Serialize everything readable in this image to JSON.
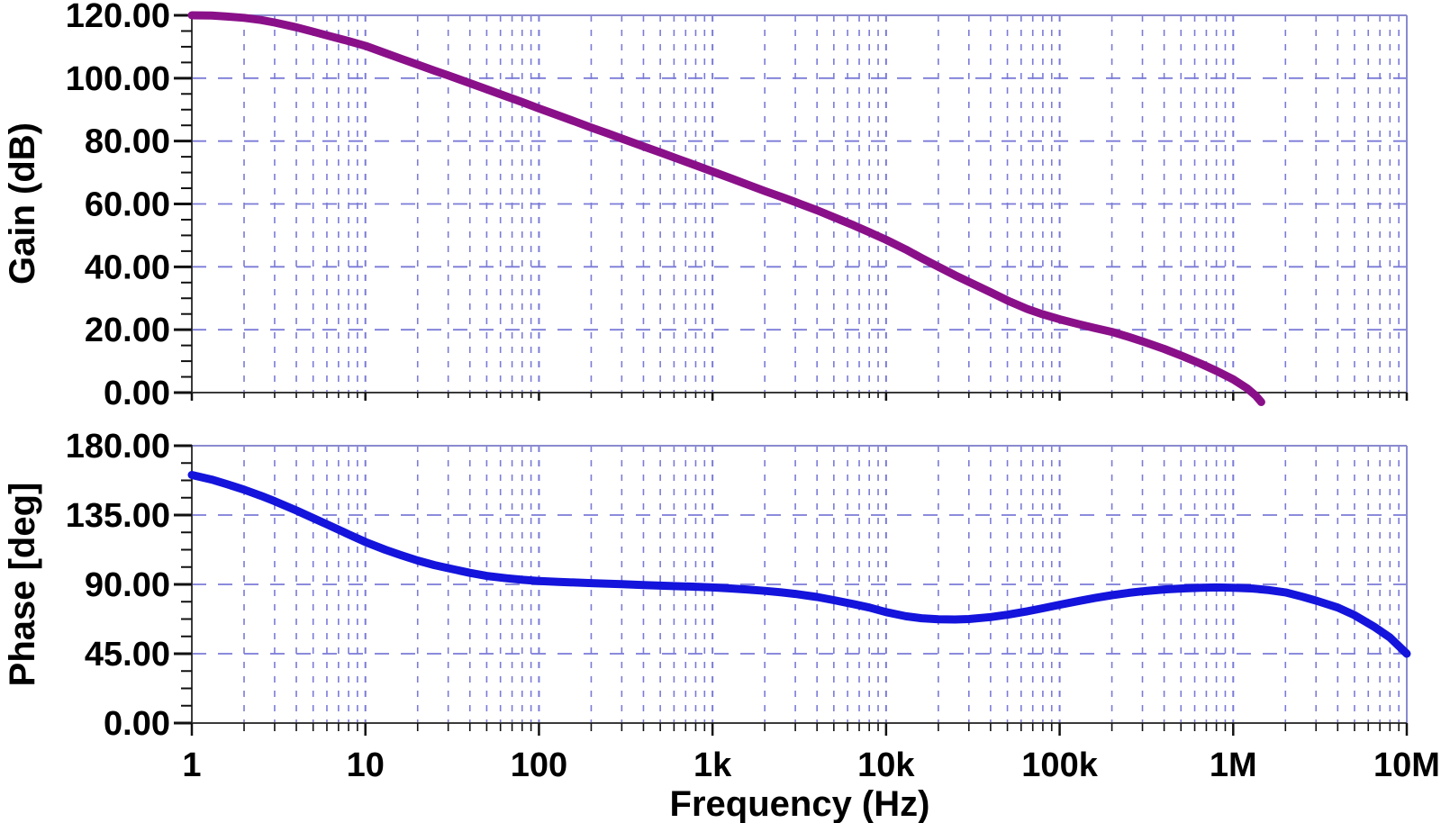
{
  "chart_data": [
    {
      "type": "line",
      "name": "gain-vs-frequency",
      "ylabel": "Gain (dB)",
      "ylim": [
        0,
        120
      ],
      "yticks": {
        "values": [
          120,
          100,
          80,
          60,
          40,
          20,
          0
        ],
        "labels": [
          "120.00",
          "100.00",
          "80.00",
          "60.00",
          "40.00",
          "20.00",
          "0.00"
        ]
      },
      "y_minor_step": 5,
      "color": "#8A1089",
      "x": [
        1,
        1.3,
        1.6,
        2,
        2.5,
        3,
        4,
        5,
        6,
        8,
        10,
        13,
        16,
        20,
        25,
        30,
        40,
        50,
        65,
        80,
        100,
        130,
        160,
        200,
        250,
        300,
        400,
        500,
        650,
        800,
        1000,
        1300,
        1600,
        2000,
        2500,
        3000,
        4000,
        5000,
        6500,
        8000,
        10000,
        13000,
        16000,
        20000,
        25000,
        30000,
        40000,
        50000,
        65000,
        80000,
        100000,
        130000,
        160000,
        200000,
        250000,
        300000,
        400000,
        500000,
        650000,
        800000,
        1000000,
        1200000,
        1350000,
        1450000
      ],
      "y": [
        120,
        119.9,
        119.6,
        119.2,
        118.5,
        117.7,
        116.2,
        114.8,
        113.6,
        111.8,
        110.3,
        108,
        106.2,
        104.3,
        102.4,
        100.9,
        98.4,
        96.5,
        94.2,
        92.4,
        90.4,
        88.1,
        86.3,
        84.3,
        82.4,
        80.8,
        78.3,
        76.4,
        74.1,
        72.3,
        70.3,
        68,
        66.1,
        64.1,
        62.2,
        60.6,
        58,
        55.8,
        53.2,
        51,
        48.6,
        45.5,
        42.8,
        40,
        37.3,
        35.2,
        31.9,
        29.3,
        26.6,
        24.9,
        23.3,
        21.7,
        20.5,
        19.3,
        17.7,
        16.3,
        13.9,
        11.8,
        9.2,
        6.9,
        4.2,
        1.4,
        -1,
        -3
      ]
    },
    {
      "type": "line",
      "name": "phase-vs-frequency",
      "ylabel": "Phase [deg]",
      "ylim": [
        0,
        180
      ],
      "yticks": {
        "values": [
          180,
          135,
          90,
          45,
          0
        ],
        "labels": [
          "180.00",
          "135.00",
          "90.00",
          "45.00",
          "0.00"
        ]
      },
      "y_minor_step": 11.25,
      "color": "#1414DC",
      "x": [
        1,
        1.3,
        1.6,
        2,
        2.5,
        3,
        4,
        5,
        6,
        8,
        10,
        13,
        16,
        20,
        25,
        30,
        40,
        50,
        65,
        80,
        100,
        130,
        160,
        200,
        250,
        300,
        400,
        500,
        650,
        800,
        1000,
        1300,
        1600,
        2000,
        2500,
        3000,
        4000,
        5000,
        6500,
        8000,
        10000,
        13000,
        16000,
        20000,
        25000,
        30000,
        40000,
        50000,
        65000,
        80000,
        100000,
        130000,
        160000,
        200000,
        250000,
        300000,
        400000,
        500000,
        650000,
        800000,
        1000000,
        1300000,
        1600000,
        2000000,
        2500000,
        3000000,
        4000000,
        5000000,
        6500000,
        8000000,
        10000000
      ],
      "y": [
        161,
        158,
        155,
        151.5,
        147.5,
        144,
        138,
        133,
        129,
        122.5,
        117.5,
        112.5,
        109,
        105.5,
        102.5,
        100.5,
        97.5,
        95.5,
        94,
        93,
        92.2,
        91.6,
        91.2,
        90.8,
        90.4,
        90.1,
        89.6,
        89.2,
        88.8,
        88.5,
        88,
        87.3,
        86.6,
        85.8,
        84.8,
        83.8,
        81.8,
        79.8,
        77.2,
        75,
        72,
        69.3,
        68,
        67.3,
        67.2,
        67.5,
        68.8,
        70.3,
        72.5,
        74.5,
        76.8,
        79.3,
        81.2,
        83,
        84.5,
        85.5,
        86.7,
        87.3,
        87.8,
        88,
        87.8,
        87.3,
        86.3,
        84.8,
        82,
        79.5,
        75,
        70,
        62.5,
        55.5,
        45
      ]
    }
  ],
  "axes": {
    "xlabel": "Frequency (Hz)",
    "xscale": "log",
    "xlim": [
      1,
      10000000
    ],
    "xticks": {
      "values": [
        1,
        10,
        100,
        1000,
        10000,
        100000,
        1000000,
        10000000
      ],
      "labels": [
        "1",
        "10",
        "100",
        "1k",
        "10k",
        "100k",
        "1M",
        "10M"
      ]
    },
    "grid": true,
    "legend": "none"
  },
  "colors": {
    "gain_curve": "#8A1089",
    "phase_curve": "#1414DC",
    "grid": "#7B7BD8",
    "border": "#8A8ACF",
    "axis": "#3A3A3A",
    "tick": "#111111",
    "text": "#000000",
    "background": "#FFFFFF"
  }
}
